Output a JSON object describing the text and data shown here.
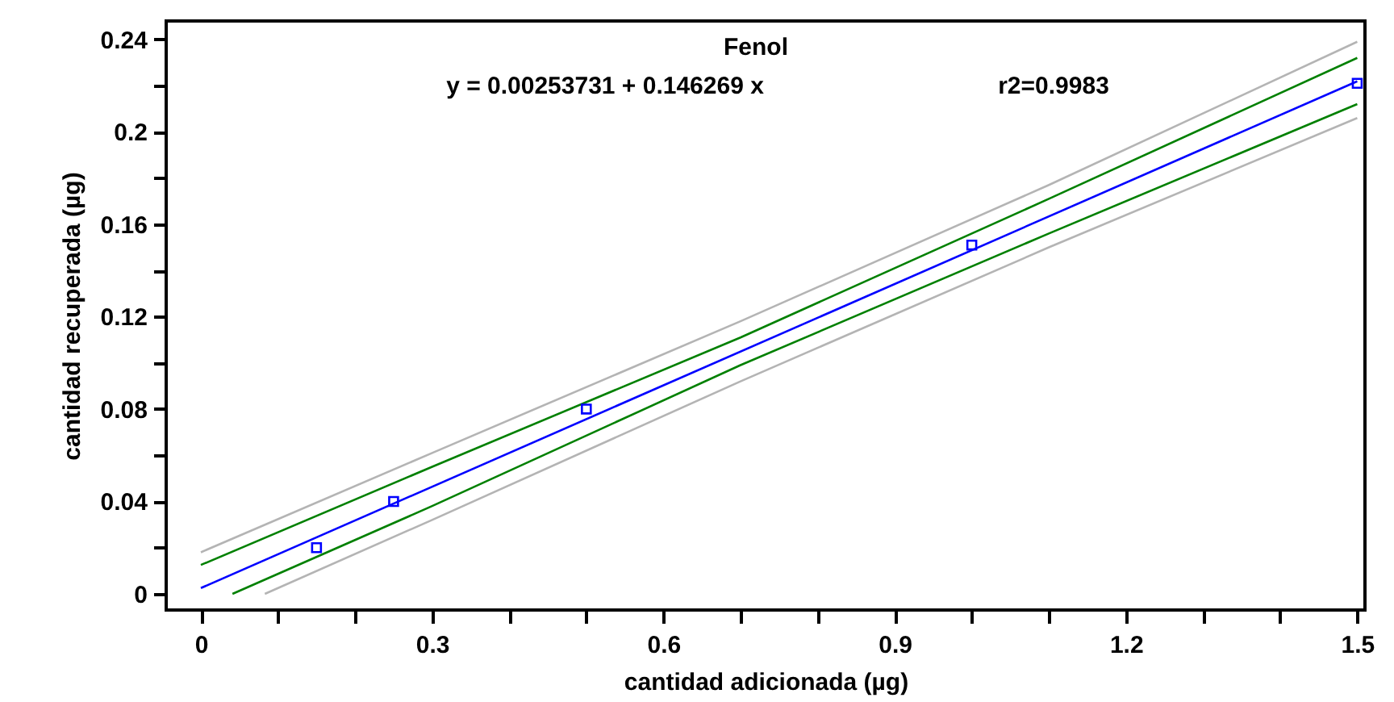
{
  "chart_data": {
    "type": "line",
    "title": "Fenol",
    "annotations": [
      "y = 0.00253731 + 0.146269 x",
      "r2=0.9983"
    ],
    "xlabel": "cantidad adicionada (µg)",
    "ylabel": "cantidad recuperada (µg)",
    "xlim": [
      -0.045,
      1.51
    ],
    "ylim": [
      -0.007,
      0.248
    ],
    "xticks": [
      0,
      {
        "value": 0.1,
        "label": null
      },
      {
        "value": 0.2,
        "label": null
      },
      0.3,
      {
        "value": 0.4,
        "label": null
      },
      {
        "value": 0.5,
        "label": null
      },
      0.6,
      {
        "value": 0.7,
        "label": null
      },
      {
        "value": 0.8,
        "label": null
      },
      0.9,
      {
        "value": 1.0,
        "label": null
      },
      {
        "value": 1.1,
        "label": null
      },
      1.2,
      {
        "value": 1.3,
        "label": null
      },
      {
        "value": 1.4,
        "label": null
      },
      1.5
    ],
    "yticks": [
      0,
      {
        "value": 0.02,
        "label": null
      },
      0.04,
      {
        "value": 0.06,
        "label": null
      },
      0.08,
      {
        "value": 0.1,
        "label": null
      },
      0.12,
      {
        "value": 0.14,
        "label": null
      },
      0.16,
      {
        "value": 0.18,
        "label": null
      },
      0.2,
      {
        "value": 0.22,
        "label": null
      },
      0.24
    ],
    "grid": false,
    "series": [
      {
        "color": "#b4b4b4",
        "line_style": "solid",
        "x": [
          0,
          0.3,
          0.7,
          1.1,
          1.5
        ],
        "values": [
          0.018,
          0.061,
          0.118,
          0.177,
          0.239
        ]
      },
      {
        "color": "#008000",
        "line_style": "solid",
        "x": [
          0,
          0.3,
          0.7,
          1.1,
          1.5
        ],
        "values": [
          0.0125,
          0.055,
          0.111,
          0.171,
          0.232
        ]
      },
      {
        "color": "#0000ff",
        "line_style": "solid",
        "x": [
          0,
          1.5
        ],
        "values": [
          0.0025,
          0.2219
        ]
      },
      {
        "color": "#008000",
        "line_style": "solid",
        "x": [
          0.041,
          0.3,
          0.7,
          1.1,
          1.5
        ],
        "values": [
          0,
          0.038,
          0.099,
          0.156,
          0.212
        ]
      },
      {
        "color": "#b4b4b4",
        "line_style": "solid",
        "x": [
          0.083,
          0.3,
          0.7,
          1.1,
          1.5
        ],
        "values": [
          0,
          0.032,
          0.092,
          0.15,
          0.206
        ]
      },
      {
        "type": "scatter",
        "color": "#0000ff",
        "marker": "square",
        "x": [
          0.15,
          0.25,
          0.5,
          1.0,
          1.5
        ],
        "values": [
          0.02,
          0.04,
          0.08,
          0.151,
          0.221
        ]
      }
    ]
  }
}
